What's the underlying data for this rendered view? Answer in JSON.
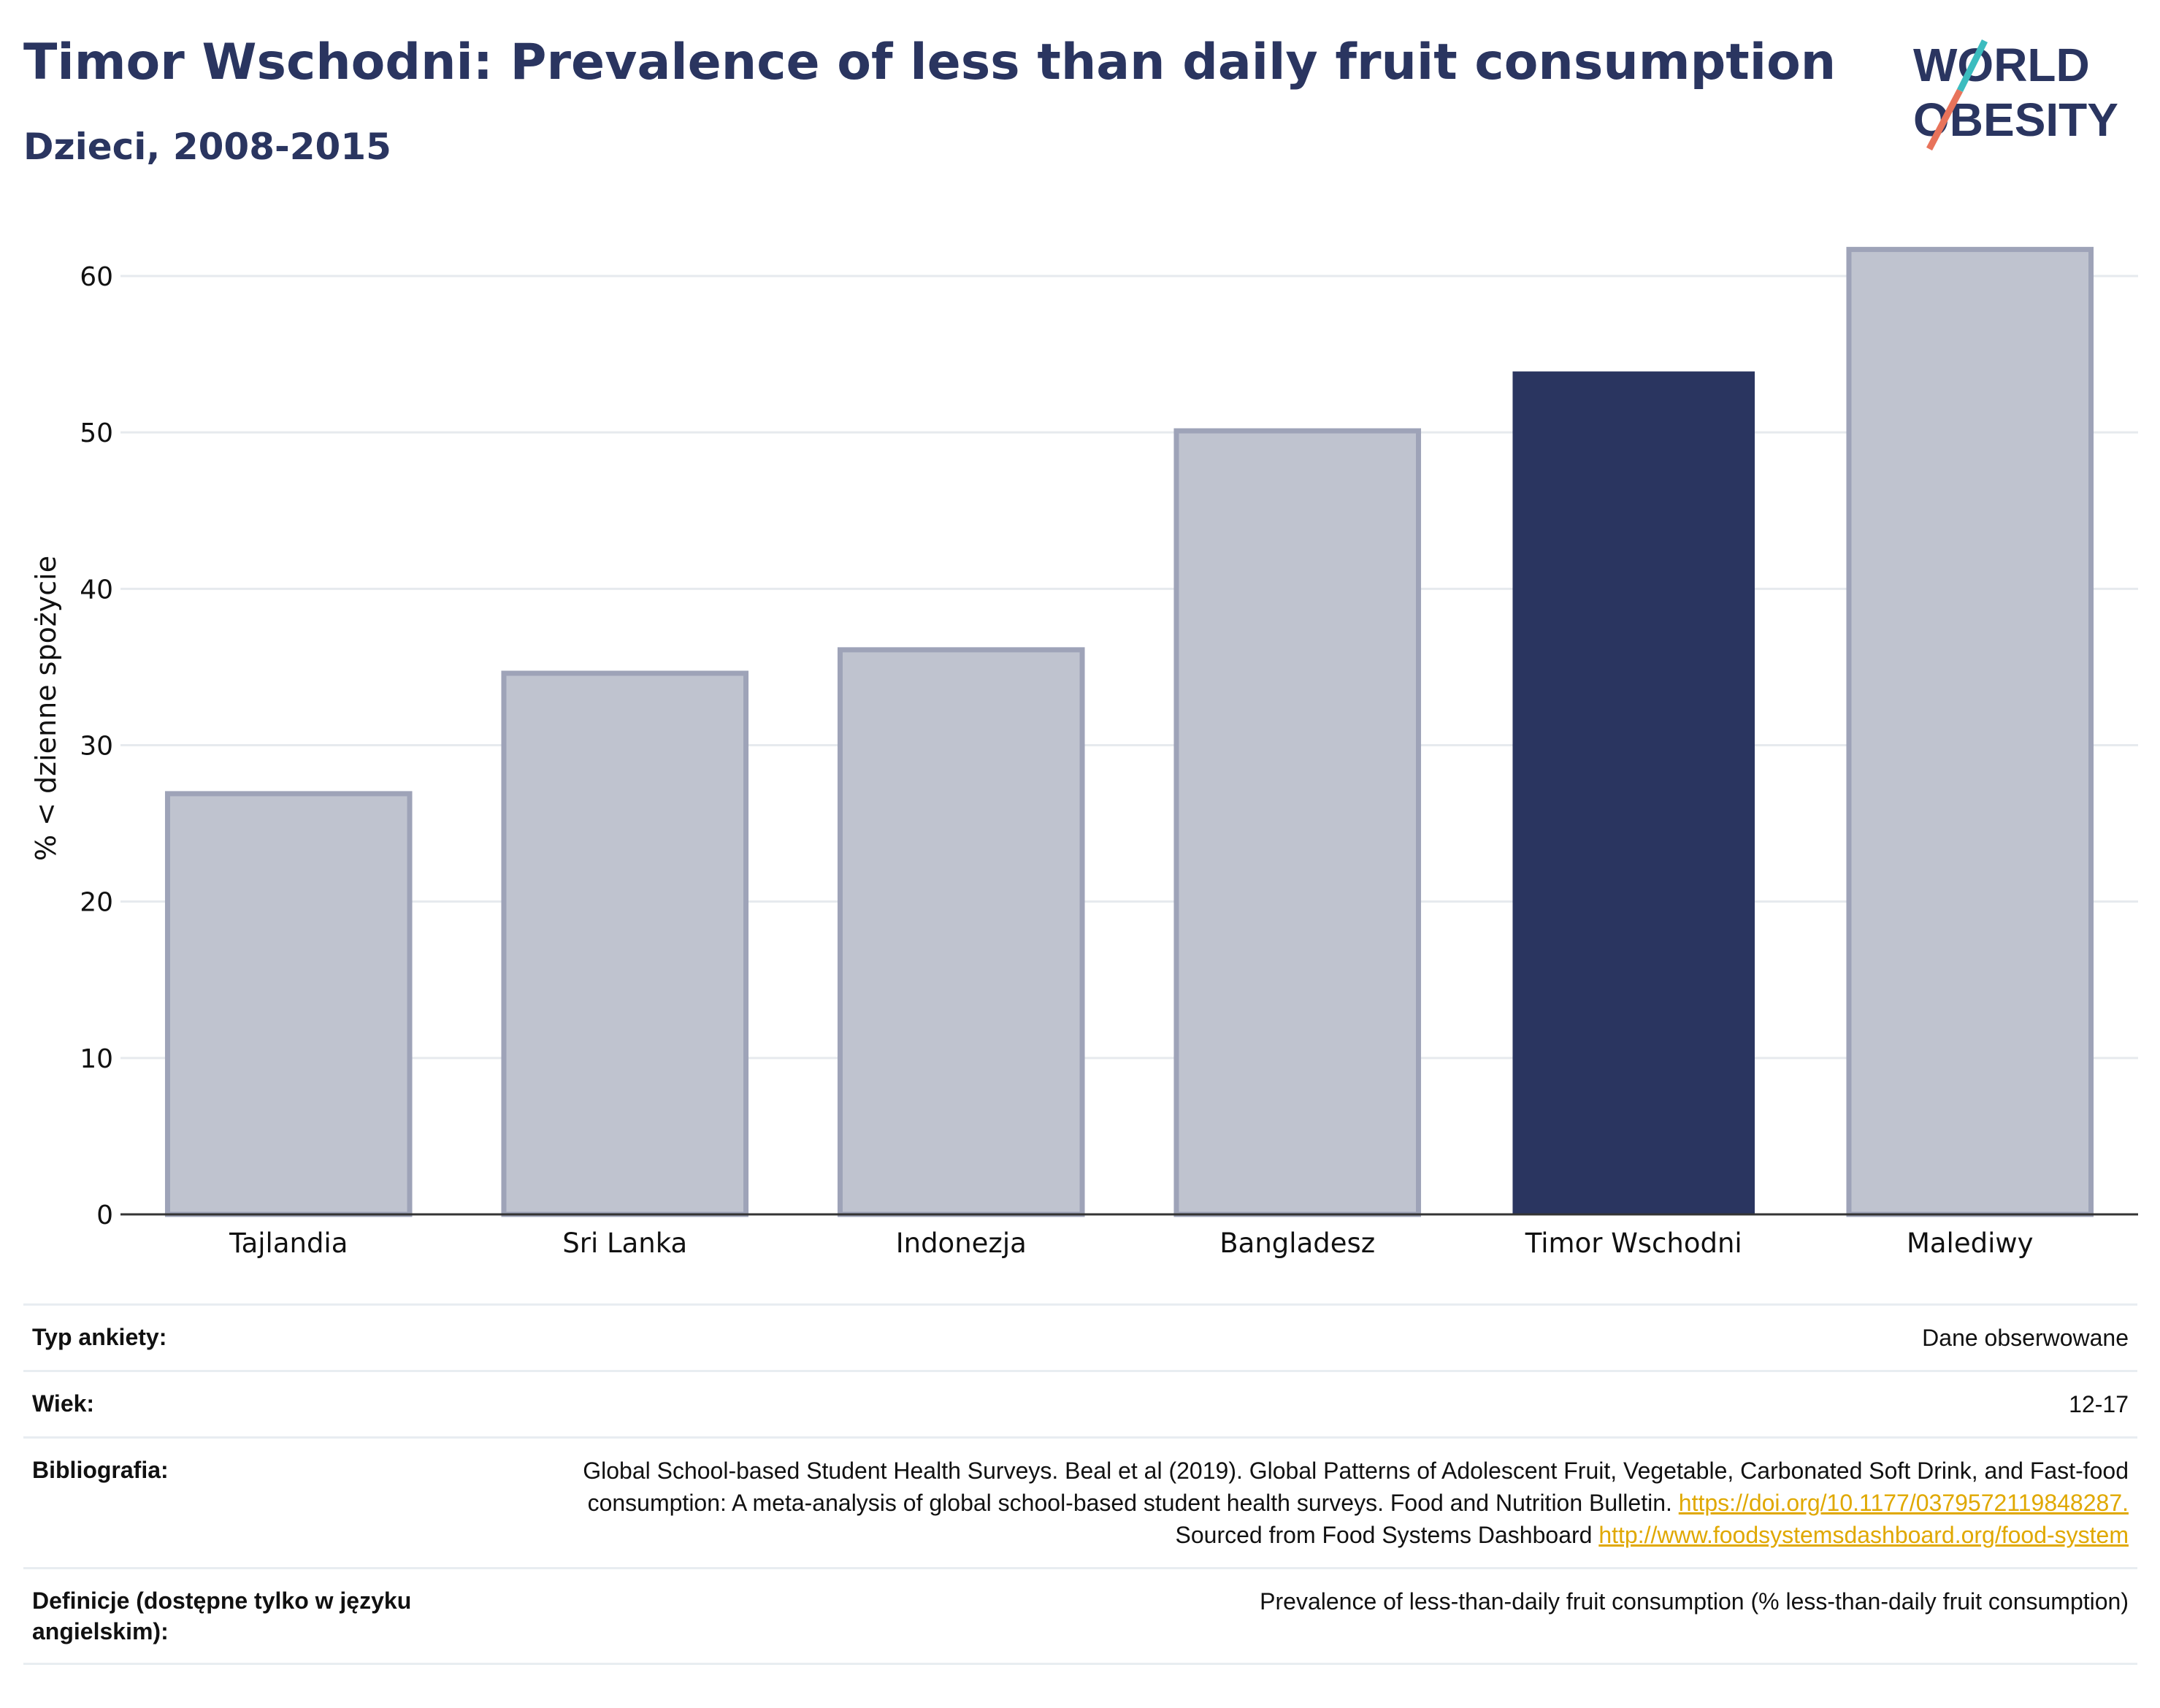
{
  "header": {
    "title": "Timor Wschodni: Prevalence of less than daily fruit consumption",
    "subtitle": "Dzieci, 2008-2015"
  },
  "logo": {
    "line1": "WORLD",
    "line2": "OBESITY",
    "colors": {
      "text": "#2a3560",
      "slash_red": "#e8735a",
      "slash_teal": "#3bbcbf"
    }
  },
  "colors": {
    "highlight": "#2a3560",
    "other": "#bfc3cf",
    "other_border": "#9ea3b8",
    "grid": "#e6eaee",
    "axis": "#333333"
  },
  "chart_data": {
    "type": "bar",
    "categories": [
      "Tajlandia",
      "Sri Lanka",
      "Indonezja",
      "Bangladesz",
      "Timor Wschodni",
      "Malediwy"
    ],
    "values": [
      26.9,
      34.6,
      36.1,
      50.1,
      53.9,
      61.7
    ],
    "highlight": "Timor Wschodni",
    "ylabel": "% < dzienne spożycie",
    "xlabel": "",
    "ylim": [
      0,
      64
    ],
    "yticks": [
      0,
      10,
      20,
      30,
      40,
      50,
      60
    ],
    "grid": true
  },
  "meta": {
    "survey_type": {
      "label": "Typ ankiety:",
      "value": "Dane obserwowane"
    },
    "age": {
      "label": "Wiek:",
      "value": "12-17"
    },
    "bibliography": {
      "label": "Bibliografia:",
      "text1": "Global School-based Student Health Surveys. Beal et al (2019). Global Patterns of Adolescent Fruit, Vegetable, Carbonated Soft Drink, and Fast-food consumption: A meta-analysis of global school-based student health surveys. Food and Nutrition Bulletin.",
      "link1": "https://doi.org/10.1177/0379572119848287.",
      "text2": "Sourced from Food Systems Dashboard",
      "link2": "http://www.foodsystemsdashboard.org/food-system"
    },
    "definitions": {
      "label": "Definicje (dostępne tylko w języku angielskim):",
      "value": "Prevalence of less-than-daily fruit consumption (% less-than-daily fruit consumption)"
    }
  }
}
